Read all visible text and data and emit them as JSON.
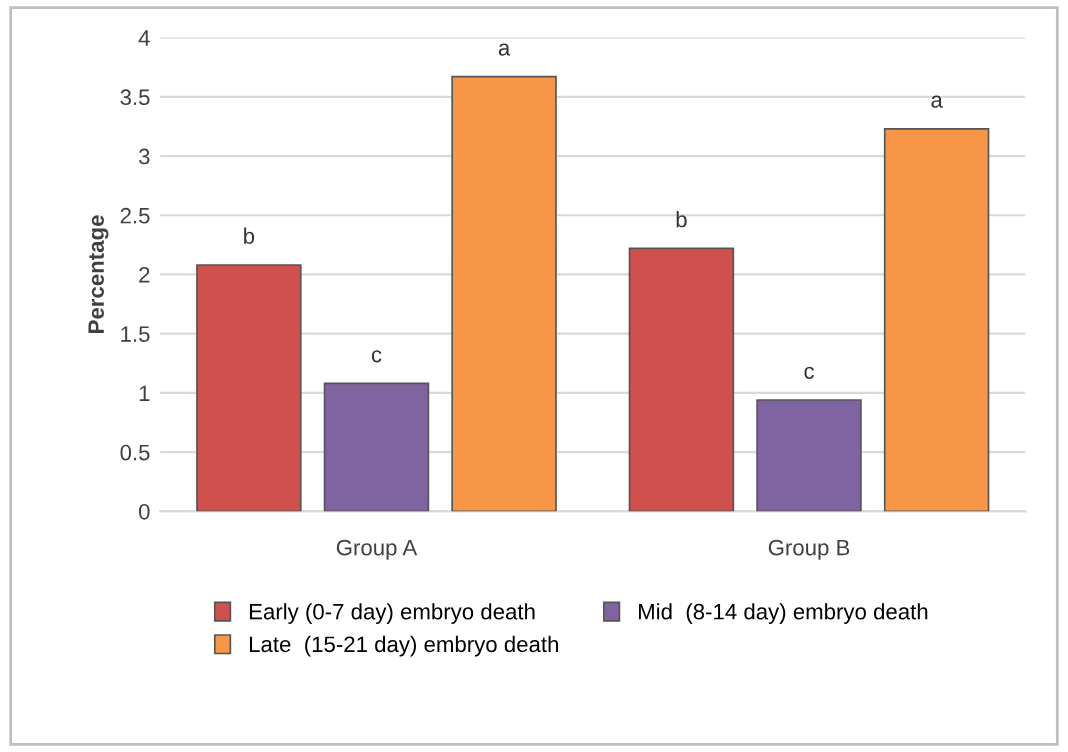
{
  "chart_data": {
    "type": "bar",
    "ylabel": "Percentage",
    "categories": [
      "Group A",
      "Group B"
    ],
    "series": [
      {
        "name": "Early (0-7 day) embryo death",
        "color": "#d0504d",
        "values": [
          2.08,
          2.22
        ],
        "value_labels": [
          "b",
          "b"
        ]
      },
      {
        "name": "Mid  (8-14 day) embryo death",
        "color": "#8064a2",
        "values": [
          1.08,
          0.94
        ],
        "value_labels": [
          "c",
          "c"
        ]
      },
      {
        "name": "Late  (15-21 day) embryo death",
        "color": "#f79646",
        "values": [
          3.67,
          3.23
        ],
        "value_labels": [
          "a",
          "a"
        ]
      }
    ],
    "ylim": [
      0,
      4
    ],
    "yticks": [
      0,
      0.5,
      1,
      1.5,
      2,
      2.5,
      3,
      3.5,
      4
    ],
    "grid": "y",
    "legend": "bottom"
  }
}
